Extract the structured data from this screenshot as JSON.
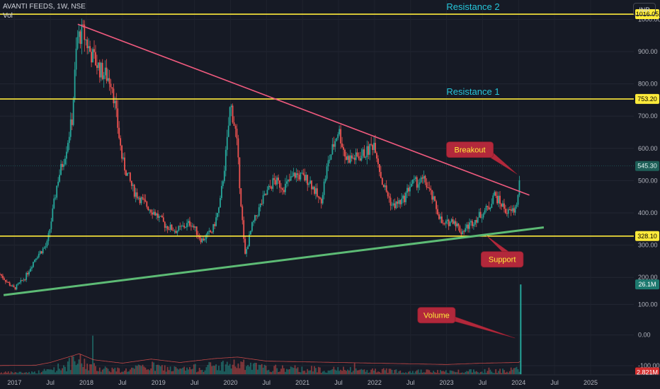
{
  "header": {
    "symbol": "AVANTI FEEDS, 1W, NSE",
    "volume_label": "Vol",
    "currency": "INR"
  },
  "colors": {
    "background": "#161a25",
    "up": "#26a69a",
    "down": "#ef5350",
    "level": "#ffeb3b",
    "trendline": "#f05a7e",
    "support_line": "#5dbb75",
    "callout": "#b2283b",
    "callout_text": "#ffeb3b",
    "level_label": "#26c6da"
  },
  "chart_data": {
    "type": "candlestick",
    "price_axis": {
      "min": 150,
      "max": 1060,
      "ticks": [
        "200.00",
        "300.00",
        "400.00",
        "500.00",
        "600.00",
        "700.00",
        "800.00",
        "900.00",
        "1000.00"
      ]
    },
    "volume_axis": {
      "min": -130,
      "max": 170,
      "ticks": [
        "100.00",
        "0.00",
        "-100.00"
      ]
    },
    "x_axis": {
      "range": [
        2016.8,
        2025.6
      ],
      "ticks": [
        "2017",
        "Jul",
        "2018",
        "Jul",
        "2019",
        "Jul",
        "2020",
        "Jul",
        "2021",
        "Jul",
        "2022",
        "Jul",
        "2023",
        "Jul",
        "2024",
        "Jul",
        "2025"
      ]
    },
    "levels": [
      {
        "name": "Resistance 2",
        "price": 1016.05,
        "tag": "1016.05"
      },
      {
        "name": "Resistance 1",
        "price": 753.2,
        "tag": "753.20"
      },
      {
        "name": "",
        "price": 328.1,
        "tag": "328.10"
      }
    ],
    "last_price": {
      "price": 545.3,
      "tag": "545.30"
    },
    "volume_tags": [
      {
        "value": 165,
        "tag": "26.1M",
        "kind": "up"
      },
      {
        "value": -122,
        "tag": "2.821M",
        "kind": "down"
      }
    ],
    "price_path": [
      [
        2016.8,
        210
      ],
      [
        2016.9,
        185
      ],
      [
        2017.0,
        165
      ],
      [
        2017.15,
        200
      ],
      [
        2017.3,
        265
      ],
      [
        2017.45,
        300
      ],
      [
        2017.5,
        360
      ],
      [
        2017.6,
        500
      ],
      [
        2017.7,
        580
      ],
      [
        2017.8,
        690
      ],
      [
        2017.87,
        940
      ],
      [
        2017.95,
        960
      ],
      [
        2018.05,
        900
      ],
      [
        2018.2,
        840
      ],
      [
        2018.35,
        810
      ],
      [
        2018.5,
        560
      ],
      [
        2018.65,
        470
      ],
      [
        2018.8,
        430
      ],
      [
        2018.95,
        400
      ],
      [
        2019.1,
        360
      ],
      [
        2019.25,
        345
      ],
      [
        2019.45,
        370
      ],
      [
        2019.6,
        315
      ],
      [
        2019.75,
        345
      ],
      [
        2019.85,
        420
      ],
      [
        2019.95,
        610
      ],
      [
        2020.0,
        740
      ],
      [
        2020.08,
        640
      ],
      [
        2020.15,
        420
      ],
      [
        2020.2,
        265
      ],
      [
        2020.3,
        360
      ],
      [
        2020.45,
        440
      ],
      [
        2020.6,
        500
      ],
      [
        2020.75,
        480
      ],
      [
        2020.9,
        520
      ],
      [
        2021.1,
        500
      ],
      [
        2021.25,
        430
      ],
      [
        2021.35,
        550
      ],
      [
        2021.5,
        660
      ],
      [
        2021.6,
        570
      ],
      [
        2021.75,
        570
      ],
      [
        2021.9,
        590
      ],
      [
        2022.0,
        620
      ],
      [
        2022.1,
        500
      ],
      [
        2022.25,
        420
      ],
      [
        2022.4,
        440
      ],
      [
        2022.5,
        490
      ],
      [
        2022.7,
        500
      ],
      [
        2022.85,
        420
      ],
      [
        2022.95,
        360
      ],
      [
        2023.1,
        380
      ],
      [
        2023.2,
        340
      ],
      [
        2023.35,
        370
      ],
      [
        2023.5,
        400
      ],
      [
        2023.6,
        420
      ],
      [
        2023.65,
        460
      ],
      [
        2023.75,
        430
      ],
      [
        2023.85,
        400
      ],
      [
        2023.95,
        410
      ],
      [
        2024.0,
        460
      ],
      [
        2024.03,
        545
      ]
    ],
    "volume_path": [
      [
        2016.8,
        5
      ],
      [
        2017.3,
        6
      ],
      [
        2017.5,
        14
      ],
      [
        2017.9,
        40
      ],
      [
        2018.1,
        22
      ],
      [
        2018.5,
        12
      ],
      [
        2018.9,
        24
      ],
      [
        2019.3,
        14
      ],
      [
        2019.8,
        26
      ],
      [
        2020.1,
        30
      ],
      [
        2020.5,
        18
      ],
      [
        2021.0,
        16
      ],
      [
        2021.5,
        14
      ],
      [
        2022.0,
        12
      ],
      [
        2022.5,
        10
      ],
      [
        2023.0,
        8
      ],
      [
        2023.5,
        12
      ],
      [
        2024.0,
        14
      ],
      [
        2024.03,
        18
      ]
    ],
    "trendlines": [
      {
        "name": "descending",
        "from": [
          2017.88,
          985
        ],
        "to": [
          2024.15,
          455
        ]
      },
      {
        "name": "ascending",
        "from": [
          2016.85,
          145
        ],
        "to": [
          2024.35,
          355
        ]
      }
    ],
    "annotations": [
      {
        "text": "Breakout",
        "box": [
          2023.0,
          620
        ],
        "target": [
          2023.98,
          520
        ],
        "pane": "price"
      },
      {
        "text": "Support",
        "box": [
          2023.48,
          280
        ],
        "target": [
          2023.55,
          330
        ],
        "pane": "price"
      },
      {
        "text": "Volume",
        "box": [
          2022.6,
          90
        ],
        "target": [
          2023.95,
          -10
        ],
        "pane": "volume"
      }
    ],
    "spikes": [
      {
        "x": 2024.03,
        "value": 165,
        "kind": "up"
      }
    ]
  }
}
